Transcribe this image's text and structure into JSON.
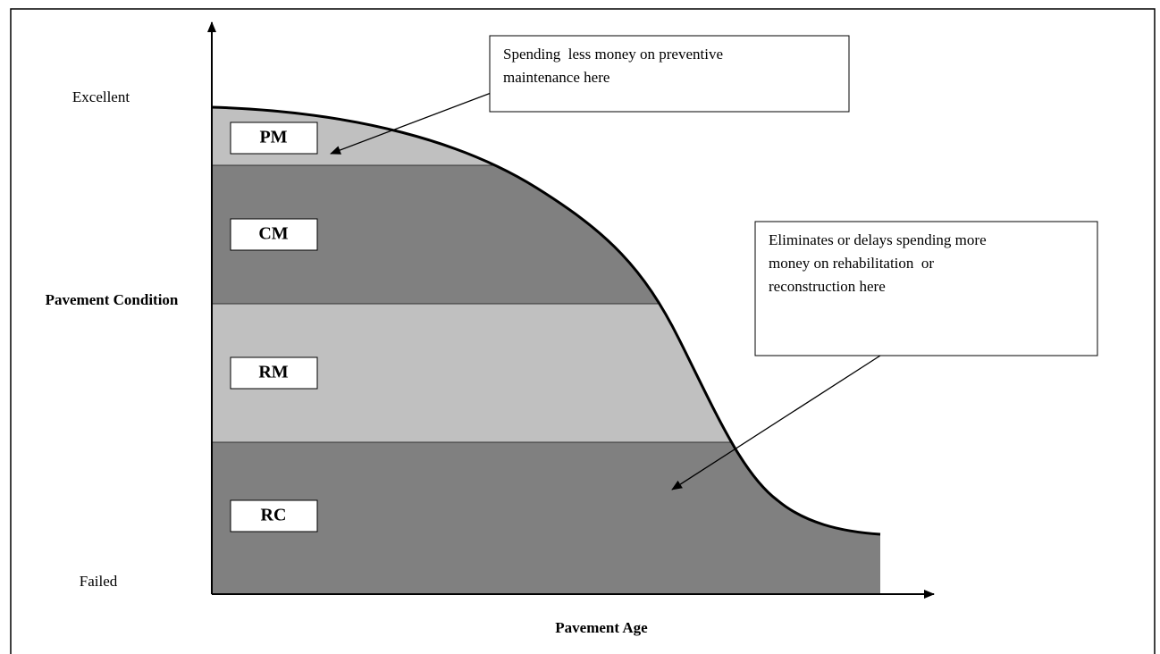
{
  "y_axis": {
    "label": "Pavement Condition",
    "top": "Excellent",
    "bottom": "Failed"
  },
  "x_axis": {
    "label": "Pavement Age"
  },
  "zones": [
    {
      "label": "PM"
    },
    {
      "label": "CM"
    },
    {
      "label": "RM"
    },
    {
      "label": "RC"
    }
  ],
  "callouts": [
    {
      "lines": [
        "Spending  less money on preventive",
        "maintenance here"
      ]
    },
    {
      "lines": [
        "Eliminates or delays spending more",
        "money on rehabilitation  or",
        "reconstruction here"
      ]
    }
  ]
}
